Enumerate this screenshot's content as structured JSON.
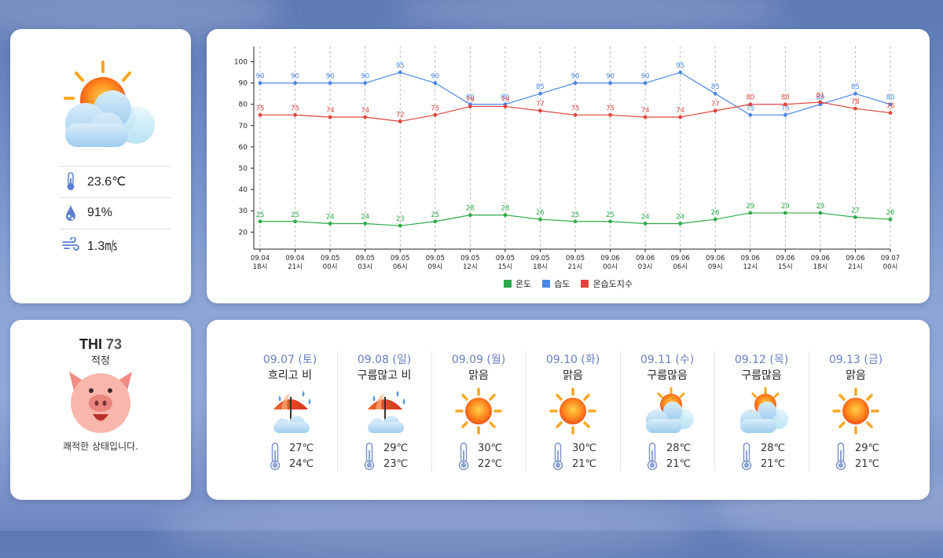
{
  "current": {
    "temperature": "23.6℃",
    "humidity": "91%",
    "wind": "1.3㎧"
  },
  "thi": {
    "label": "THI",
    "value": "73",
    "level": "적정",
    "message": "쾌적한 상태입니다."
  },
  "chart_data": {
    "type": "line",
    "categories": [
      [
        "09.04",
        "18시"
      ],
      [
        "09.04",
        "21시"
      ],
      [
        "09.05",
        "00시"
      ],
      [
        "09.05",
        "03시"
      ],
      [
        "09.05",
        "06시"
      ],
      [
        "09.05",
        "09시"
      ],
      [
        "09.05",
        "12시"
      ],
      [
        "09.05",
        "15시"
      ],
      [
        "09.05",
        "18시"
      ],
      [
        "09.05",
        "21시"
      ],
      [
        "09.06",
        "00시"
      ],
      [
        "09.06",
        "03시"
      ],
      [
        "09.06",
        "06시"
      ],
      [
        "09.06",
        "09시"
      ],
      [
        "09.06",
        "12시"
      ],
      [
        "09.06",
        "15시"
      ],
      [
        "09.06",
        "18시"
      ],
      [
        "09.06",
        "21시"
      ],
      [
        "09.07",
        "00시"
      ]
    ],
    "series": [
      {
        "name": "온도",
        "color": "#2eaa4a",
        "values": [
          25,
          25,
          24,
          24,
          23,
          25,
          28,
          28,
          26,
          25,
          25,
          24,
          24,
          26,
          29,
          29,
          29,
          27,
          26
        ]
      },
      {
        "name": "습도",
        "color": "#4a86e8",
        "values": [
          90,
          90,
          90,
          90,
          95,
          90,
          80,
          80,
          85,
          90,
          90,
          90,
          95,
          85,
          75,
          75,
          80,
          85,
          80
        ]
      },
      {
        "name": "온습도지수",
        "color": "#e0453c",
        "values": [
          75,
          75,
          74,
          74,
          72,
          75,
          79,
          79,
          77,
          75,
          75,
          74,
          74,
          77,
          80,
          80,
          81,
          78,
          76
        ]
      }
    ],
    "yticks": [
      20,
      30,
      40,
      50,
      60,
      70,
      80,
      90,
      100
    ],
    "ylim": [
      12,
      105
    ],
    "grid": "vertical-dashed-at-midnight-and-daily"
  },
  "forecast": [
    {
      "date": "09.07 (토)",
      "cond": "흐리고 비",
      "icon": "rain-cloud-umbrella-icon",
      "hi": "27℃",
      "lo": "24℃"
    },
    {
      "date": "09.08 (일)",
      "cond": "구름많고 비",
      "icon": "rain-cloud-umbrella-icon",
      "hi": "29℃",
      "lo": "23℃"
    },
    {
      "date": "09.09 (월)",
      "cond": "맑음",
      "icon": "sun-icon",
      "hi": "30℃",
      "lo": "22℃"
    },
    {
      "date": "09.10 (화)",
      "cond": "맑음",
      "icon": "sun-icon",
      "hi": "30℃",
      "lo": "21℃"
    },
    {
      "date": "09.11 (수)",
      "cond": "구름많음",
      "icon": "partly-cloudy-icon",
      "hi": "28℃",
      "lo": "21℃"
    },
    {
      "date": "09.12 (목)",
      "cond": "구름많음",
      "icon": "partly-cloudy-icon",
      "hi": "28℃",
      "lo": "21℃"
    },
    {
      "date": "09.13 (금)",
      "cond": "맑음",
      "icon": "sun-icon",
      "hi": "29℃",
      "lo": "21℃"
    }
  ]
}
